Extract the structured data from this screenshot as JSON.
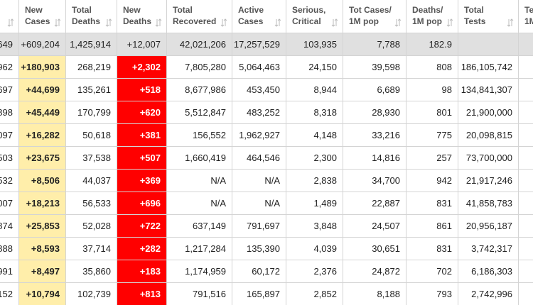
{
  "table": {
    "headers": [
      [
        "New",
        "Cases"
      ],
      [
        "Total",
        "Deaths"
      ],
      [
        "New",
        "Deaths"
      ],
      [
        "Total",
        "Recovered"
      ],
      [
        "Active",
        "Cases"
      ],
      [
        "Serious,",
        "Critical"
      ],
      [
        "Tot Cases/",
        "1M pop"
      ],
      [
        "Deaths/",
        "1M pop"
      ],
      [
        "Total",
        "Tests"
      ],
      [
        "Te",
        "1M"
      ]
    ],
    "total_row": [
      "649",
      "+609,204",
      "1,425,914",
      "+12,007",
      "42,021,206",
      "17,257,529",
      "103,935",
      "7,788",
      "182.9"
    ],
    "rows": [
      [
        "962",
        "+180,903",
        "268,219",
        "+2,302",
        "7,805,280",
        "5,064,463",
        "24,150",
        "39,598",
        "808",
        "186,105,742"
      ],
      [
        "697",
        "+44,699",
        "135,261",
        "+518",
        "8,677,986",
        "453,450",
        "8,944",
        "6,689",
        "98",
        "134,841,307"
      ],
      [
        "898",
        "+45,449",
        "170,799",
        "+620",
        "5,512,847",
        "483,252",
        "8,318",
        "28,930",
        "801",
        "21,900,000"
      ],
      [
        "097",
        "+16,282",
        "50,618",
        "+381",
        "156,552",
        "1,962,927",
        "4,148",
        "33,216",
        "775",
        "20,098,815"
      ],
      [
        "503",
        "+23,675",
        "37,538",
        "+507",
        "1,660,419",
        "464,546",
        "2,300",
        "14,816",
        "257",
        "73,700,000"
      ],
      [
        "532",
        "+8,506",
        "44,037",
        "+369",
        "N/A",
        "N/A",
        "2,838",
        "34,700",
        "942",
        "21,917,246"
      ],
      [
        "007",
        "+18,213",
        "56,533",
        "+696",
        "N/A",
        "N/A",
        "1,489",
        "22,887",
        "831",
        "41,858,783"
      ],
      [
        "874",
        "+25,853",
        "52,028",
        "+722",
        "637,149",
        "791,697",
        "3,848",
        "24,507",
        "861",
        "20,956,187"
      ],
      [
        "888",
        "+8,593",
        "37,714",
        "+282",
        "1,217,284",
        "135,390",
        "4,039",
        "30,651",
        "831",
        "3,742,317"
      ],
      [
        "991",
        "+8,497",
        "35,860",
        "+183",
        "1,174,959",
        "60,172",
        "2,376",
        "24,872",
        "702",
        "6,186,303"
      ],
      [
        "152",
        "+10,794",
        "102,739",
        "+813",
        "791,516",
        "165,897",
        "2,852",
        "8,188",
        "793",
        "2,742,996"
      ]
    ]
  }
}
